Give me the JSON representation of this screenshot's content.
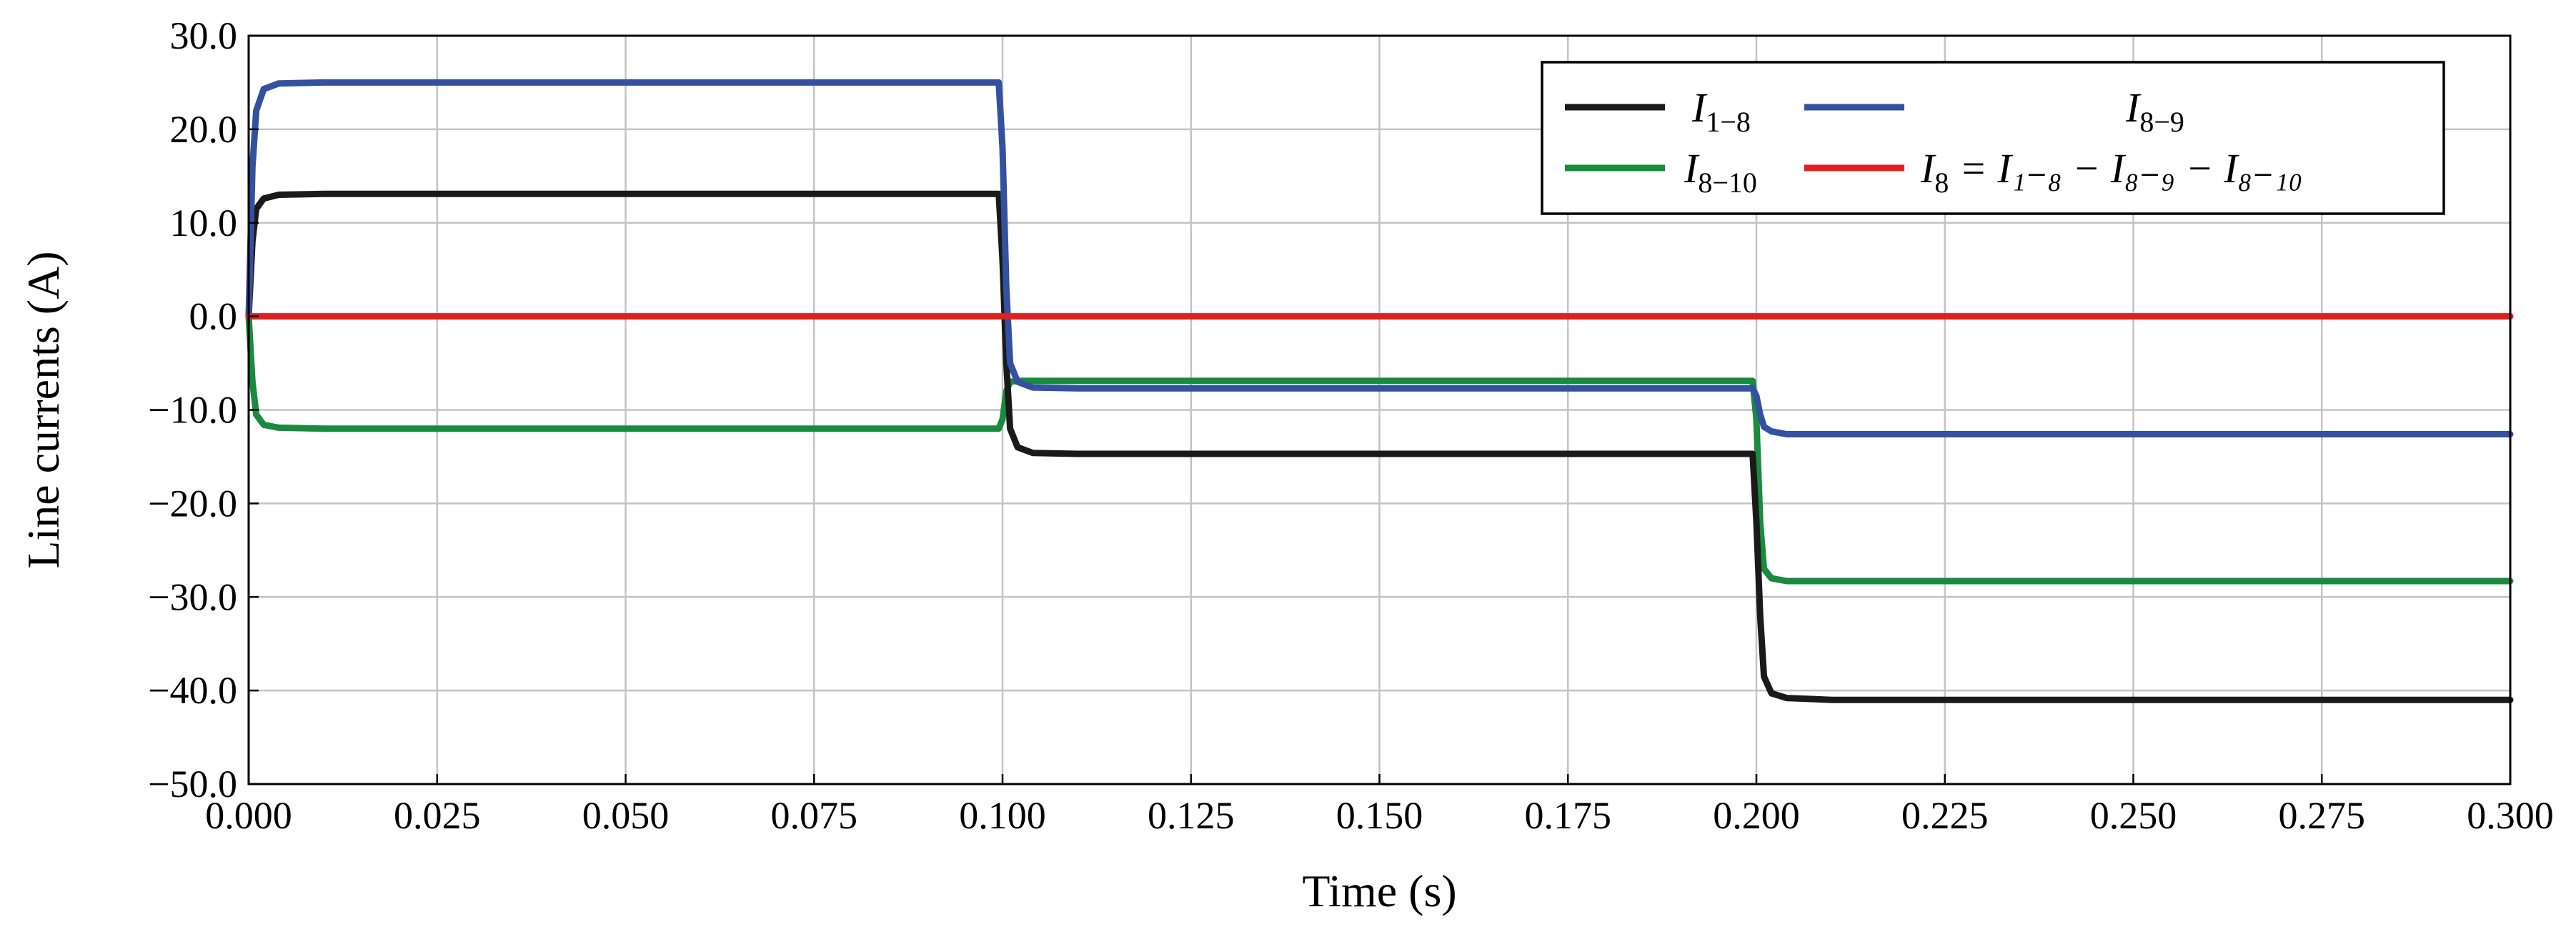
{
  "chart_data": {
    "type": "line",
    "xlabel": "Time (s)",
    "ylabel": "Line currents (A)",
    "xlim": [
      0.0,
      0.3
    ],
    "ylim": [
      -50.0,
      30.0
    ],
    "xticks": [
      "0.000",
      "0.025",
      "0.050",
      "0.075",
      "0.100",
      "0.125",
      "0.150",
      "0.175",
      "0.200",
      "0.225",
      "0.250",
      "0.275",
      "0.300"
    ],
    "yticks": [
      "30.0",
      "20.0",
      "10.0",
      "0.0",
      "−10.0",
      "−20.0",
      "−30.0",
      "−40.0",
      "−50.0"
    ],
    "grid": true,
    "legend_position": "top-right",
    "series": [
      {
        "name": "I_{1-8}",
        "legend_label": {
          "main": "I",
          "sub": "1−8"
        },
        "color": "#1a1a1a",
        "x": [
          0.0,
          0.0005,
          0.001,
          0.002,
          0.004,
          0.01,
          0.0995,
          0.1,
          0.1005,
          0.101,
          0.102,
          0.104,
          0.11,
          0.1995,
          0.2,
          0.2005,
          0.201,
          0.202,
          0.204,
          0.21,
          0.3
        ],
        "y": [
          0.0,
          8.0,
          11.5,
          12.6,
          13.0,
          13.1,
          13.1,
          6.0,
          -5.0,
          -12.0,
          -14.0,
          -14.6,
          -14.7,
          -14.7,
          -22.0,
          -32.0,
          -38.5,
          -40.3,
          -40.8,
          -41.0,
          -41.0
        ]
      },
      {
        "name": "I_{8-9}",
        "legend_label": {
          "main": "I",
          "sub": "8−9"
        },
        "color": "#3450a0",
        "x": [
          0.0,
          0.0005,
          0.001,
          0.002,
          0.004,
          0.01,
          0.0995,
          0.1,
          0.1005,
          0.101,
          0.102,
          0.104,
          0.11,
          0.1995,
          0.2,
          0.2005,
          0.201,
          0.202,
          0.204,
          0.21,
          0.3
        ],
        "y": [
          0.0,
          16.0,
          22.0,
          24.3,
          24.9,
          25.0,
          25.0,
          18.0,
          3.0,
          -5.0,
          -7.0,
          -7.6,
          -7.7,
          -7.7,
          -8.5,
          -10.5,
          -11.8,
          -12.3,
          -12.6,
          -12.6,
          -12.6
        ]
      },
      {
        "name": "I_{8-10}",
        "legend_label": {
          "main": "I",
          "sub": "8−10"
        },
        "color": "#1a8a3e",
        "x": [
          0.0,
          0.0005,
          0.001,
          0.002,
          0.004,
          0.01,
          0.0995,
          0.1,
          0.1005,
          0.101,
          0.102,
          0.104,
          0.11,
          0.1995,
          0.2,
          0.2005,
          0.201,
          0.202,
          0.204,
          0.21,
          0.3
        ],
        "y": [
          0.0,
          -7.0,
          -10.5,
          -11.6,
          -11.9,
          -12.0,
          -12.0,
          -11.0,
          -8.0,
          -7.0,
          -6.9,
          -6.9,
          -6.9,
          -6.9,
          -11.0,
          -22.0,
          -27.0,
          -28.0,
          -28.3,
          -28.3,
          -28.3
        ]
      },
      {
        "name": "I_8 = I_{1-8} − I_{8-9} − I_{8-10}",
        "legend_label": {
          "main": "I",
          "sub": "8",
          "rest": " = I₁₋₈ − I₈₋₉ − I₈₋₁₀"
        },
        "color": "#e02020",
        "x": [
          0.0,
          0.3
        ],
        "y": [
          0.0,
          0.0
        ]
      }
    ]
  }
}
